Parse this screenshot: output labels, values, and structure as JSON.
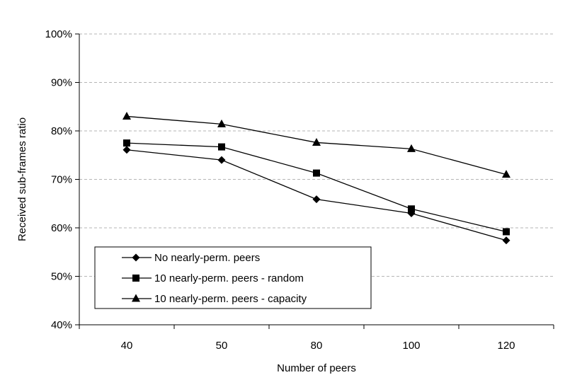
{
  "chart_data": {
    "type": "line",
    "title": "",
    "xlabel": "Number of peers",
    "ylabel": "Received sub-frames ratio",
    "categories": [
      "40",
      "50",
      "80",
      "100",
      "120"
    ],
    "ylim": [
      40,
      100
    ],
    "y_ticks": [
      40,
      50,
      60,
      70,
      80,
      90,
      100
    ],
    "y_tick_labels": [
      "40%",
      "50%",
      "60%",
      "70%",
      "80%",
      "90%",
      "100%"
    ],
    "grid": "horizontal dashed",
    "legend_position": "bottom-left",
    "series": [
      {
        "name": "No nearly-perm. peers",
        "marker": "diamond",
        "values": [
          76.1,
          74.0,
          65.9,
          63.0,
          57.4
        ]
      },
      {
        "name": "10 nearly-perm. peers - random",
        "marker": "square",
        "values": [
          77.5,
          76.7,
          71.3,
          63.9,
          59.2
        ]
      },
      {
        "name": "10 nearly-perm. peers - capacity",
        "marker": "triangle",
        "values": [
          83.0,
          81.4,
          77.6,
          76.3,
          71.0
        ]
      }
    ]
  }
}
